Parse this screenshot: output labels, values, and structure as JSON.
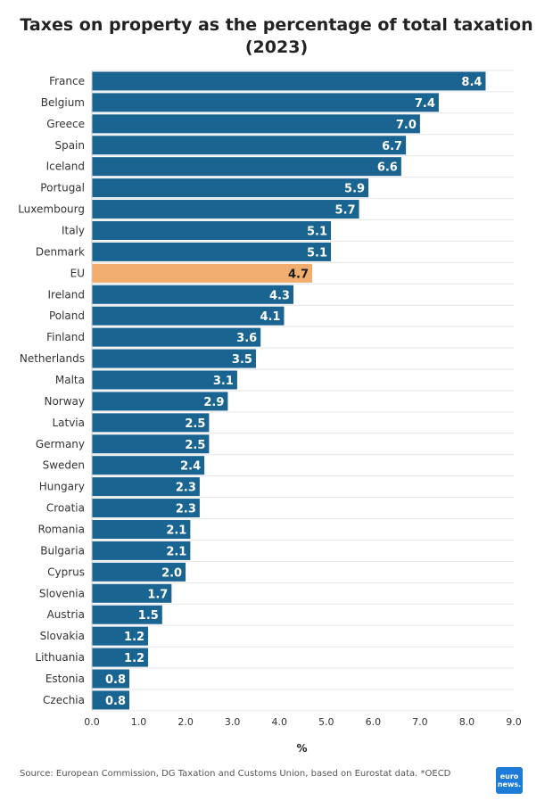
{
  "chart_data": {
    "type": "bar",
    "orientation": "horizontal",
    "title_line1": "Taxes on property as the percentage of total taxation",
    "title_line2": "(2023)",
    "xlabel": "%",
    "ylabel": "",
    "xlim": [
      0,
      9
    ],
    "xticks": [
      "0.0",
      "1.0",
      "2.0",
      "3.0",
      "4.0",
      "5.0",
      "6.0",
      "7.0",
      "8.0",
      "9.0"
    ],
    "grid": true,
    "colors": {
      "default": "#1a6492",
      "highlight": "#f0ad6e"
    },
    "highlight": "EU",
    "categories": [
      "France",
      "Belgium",
      "Greece",
      "Spain",
      "Iceland",
      "Portugal",
      "Luxembourg",
      "Italy",
      "Denmark",
      "EU",
      "Ireland",
      "Poland",
      "Finland",
      "Netherlands",
      "Malta",
      "Norway",
      "Latvia",
      "Germany",
      "Sweden",
      "Hungary",
      "Croatia",
      "Romania",
      "Bulgaria",
      "Cyprus",
      "Slovenia",
      "Austria",
      "Slovakia",
      "Lithuania",
      "Estonia",
      "Czechia"
    ],
    "values": [
      8.4,
      7.4,
      7.0,
      6.7,
      6.6,
      5.9,
      5.7,
      5.1,
      5.1,
      4.7,
      4.3,
      4.1,
      3.6,
      3.5,
      3.1,
      2.9,
      2.5,
      2.5,
      2.4,
      2.3,
      2.3,
      2.1,
      2.1,
      2.0,
      1.7,
      1.5,
      1.2,
      1.2,
      0.8,
      0.8
    ],
    "labels": [
      "8.4",
      "7.4",
      "7.0",
      "6.7",
      "6.6",
      "5.9",
      "5.7",
      "5.1",
      "5.1",
      "4.7",
      "4.3",
      "4.1",
      "3.6",
      "3.5",
      "3.1",
      "2.9",
      "2.5",
      "2.5",
      "2.4",
      "2.3",
      "2.3",
      "2.1",
      "2.1",
      "2.0",
      "1.7",
      "1.5",
      "1.2",
      "1.2",
      "0.8",
      "0.8"
    ]
  },
  "footer": {
    "source": "Source: European Commission, DG Taxation and Customs Union, based on Eurostat data. *OECD",
    "logo_line1": "euro",
    "logo_line2": "news."
  }
}
